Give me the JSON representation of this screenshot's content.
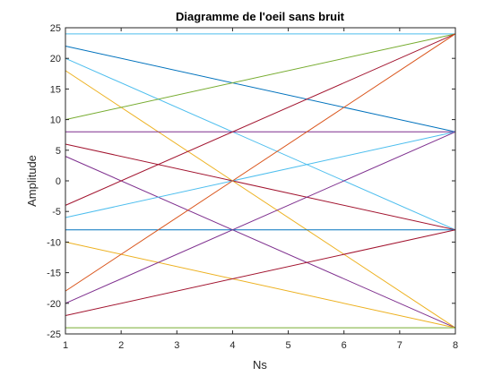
{
  "chart_data": {
    "type": "line",
    "title": "Diagramme de l'oeil sans bruit",
    "xlabel": "Ns",
    "ylabel": "Amplitude",
    "xlim": [
      1,
      8
    ],
    "ylim": [
      -25,
      25
    ],
    "xticks": [
      1,
      2,
      3,
      4,
      5,
      6,
      7,
      8
    ],
    "yticks": [
      -25,
      -20,
      -15,
      -10,
      -5,
      0,
      5,
      10,
      15,
      20,
      25
    ],
    "grid": false,
    "legend": "none",
    "x": [
      1,
      8
    ],
    "series": [
      {
        "values": [
          24,
          24
        ],
        "color": "#4DBEEE"
      },
      {
        "values": [
          22,
          8
        ],
        "color": "#0072BD"
      },
      {
        "values": [
          20,
          -8
        ],
        "color": "#4DBEEE"
      },
      {
        "values": [
          18,
          -24
        ],
        "color": "#EDB120"
      },
      {
        "values": [
          10,
          24
        ],
        "color": "#77AC30"
      },
      {
        "values": [
          8,
          8
        ],
        "color": "#7E2F8E"
      },
      {
        "values": [
          6,
          -8
        ],
        "color": "#A2142F"
      },
      {
        "values": [
          4,
          -24
        ],
        "color": "#7E2F8E"
      },
      {
        "values": [
          -4,
          24
        ],
        "color": "#A2142F"
      },
      {
        "values": [
          -6,
          8
        ],
        "color": "#4DBEEE"
      },
      {
        "values": [
          -8,
          -8
        ],
        "color": "#0072BD"
      },
      {
        "values": [
          -10,
          -24
        ],
        "color": "#EDB120"
      },
      {
        "values": [
          -18,
          24
        ],
        "color": "#D95319"
      },
      {
        "values": [
          -20,
          8
        ],
        "color": "#7E2F8E"
      },
      {
        "values": [
          -22,
          -8
        ],
        "color": "#A2142F"
      },
      {
        "values": [
          -24,
          -24
        ],
        "color": "#77AC30"
      }
    ]
  }
}
